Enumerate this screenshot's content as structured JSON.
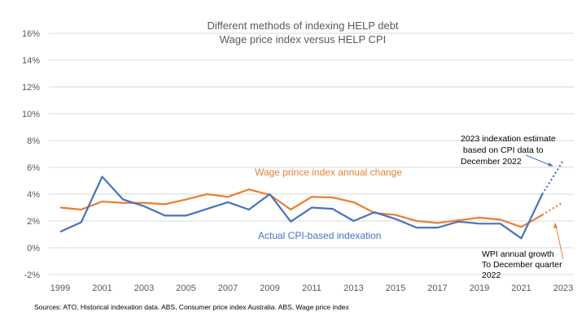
{
  "chart_data": {
    "type": "line",
    "title": "Different methods of indexing HELP debt",
    "subtitle": "Wage price index versus HELP CPI",
    "xlabel": "",
    "ylabel": "",
    "x": [
      1999,
      2000,
      2001,
      2002,
      2003,
      2004,
      2005,
      2006,
      2007,
      2008,
      2009,
      2010,
      2011,
      2012,
      2013,
      2014,
      2015,
      2016,
      2017,
      2018,
      2019,
      2020,
      2021,
      2022,
      2023
    ],
    "x_tick_labels": [
      "1999",
      "2001",
      "2003",
      "2005",
      "2007",
      "2009",
      "2011",
      "2013",
      "2015",
      "2017",
      "2019",
      "2021",
      "2023"
    ],
    "x_ticks": [
      1999,
      2001,
      2003,
      2005,
      2007,
      2009,
      2011,
      2013,
      2015,
      2017,
      2019,
      2021,
      2023
    ],
    "ylim": [
      -2,
      16
    ],
    "y_ticks": [
      -2,
      0,
      2,
      4,
      6,
      8,
      10,
      12,
      14,
      16
    ],
    "y_tick_labels": [
      "-2%",
      "0%",
      "2%",
      "4%",
      "6%",
      "8%",
      "10%",
      "12%",
      "14%",
      "16%"
    ],
    "grid": true,
    "legend": "none",
    "series": [
      {
        "name": "Wage prince index annual change",
        "color": "#ED7D31",
        "values": [
          3.0,
          2.85,
          3.45,
          3.35,
          3.35,
          3.25,
          3.6,
          4.0,
          3.8,
          4.35,
          3.95,
          2.85,
          3.8,
          3.75,
          3.4,
          2.6,
          2.45,
          2.0,
          1.85,
          2.05,
          2.25,
          2.1,
          1.55,
          2.45,
          null
        ],
        "projection": {
          "from": 2022,
          "to": 2023,
          "values": [
            2.45,
            3.4
          ],
          "style": "dotted"
        }
      },
      {
        "name": "Actual CPI-based indexation",
        "color": "#4472C4",
        "values": [
          1.2,
          1.9,
          5.3,
          3.6,
          3.1,
          2.4,
          2.4,
          2.9,
          3.4,
          2.85,
          4.0,
          1.95,
          3.0,
          2.9,
          2.0,
          2.65,
          2.15,
          1.5,
          1.5,
          1.95,
          1.8,
          1.8,
          0.7,
          4.0,
          null
        ],
        "projection": {
          "from": 2022,
          "to": 2023,
          "values": [
            4.0,
            6.5
          ],
          "style": "dotted"
        }
      }
    ],
    "annotations": [
      {
        "text_lines": [
          "2023 indexation estimate",
          " based on CPI data to",
          "December 2022"
        ],
        "points_to": "CPI 2023 projection",
        "arrow_color": "#4472C4"
      },
      {
        "text_lines": [
          "WPI annual growth",
          "To December quarter",
          "2022"
        ],
        "points_to": "WPI 2023 projection",
        "arrow_color": "#ED7D31"
      }
    ]
  },
  "source_note": "Sources: ATO, Historical indexation data. ABS, Consumer price index Australia. ABS, Wage price index"
}
